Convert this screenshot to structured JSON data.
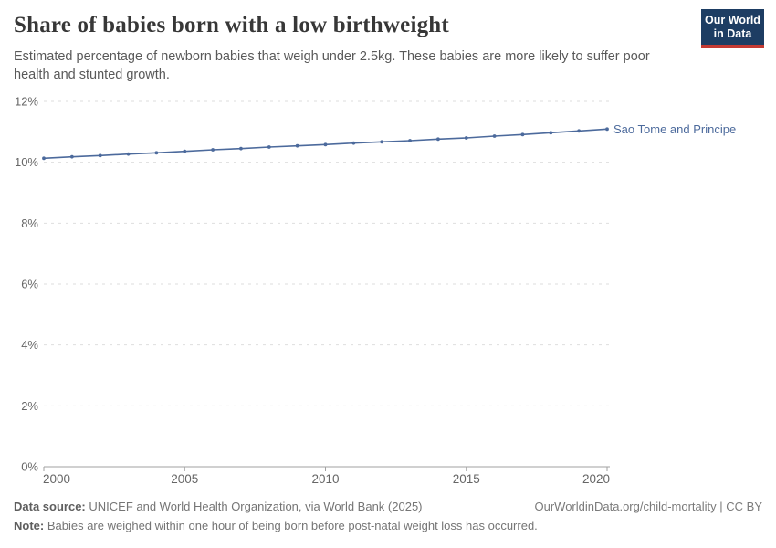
{
  "header": {
    "title": "Share of babies born with a low birthweight",
    "subtitle": "Estimated percentage of newborn babies that weigh under 2.5kg. These babies are more likely to suffer poor health and stunted growth.",
    "logo": {
      "line1": "Our World",
      "line2": "in Data",
      "bg": "#1d3d63",
      "accent": "#c43a33"
    }
  },
  "chart_data": {
    "type": "line",
    "title": "Share of babies born with a low birthweight",
    "xlabel": "",
    "ylabel": "",
    "xlim": [
      2000,
      2020
    ],
    "ylim": [
      0,
      12
    ],
    "grid": "horizontal-dashed",
    "legend_position": "end-of-line-label",
    "x_ticks": [
      2000,
      2005,
      2010,
      2015,
      2020
    ],
    "y_ticks": [
      0,
      2,
      4,
      6,
      8,
      10,
      12
    ],
    "y_tick_suffix": "%",
    "x": [
      2000,
      2001,
      2002,
      2003,
      2004,
      2005,
      2006,
      2007,
      2008,
      2009,
      2010,
      2011,
      2012,
      2013,
      2014,
      2015,
      2016,
      2017,
      2018,
      2019,
      2020
    ],
    "series": [
      {
        "name": "Sao Tome and Principe",
        "color": "#4c6a9c",
        "values": [
          10.13,
          10.18,
          10.22,
          10.27,
          10.31,
          10.36,
          10.41,
          10.45,
          10.5,
          10.54,
          10.58,
          10.63,
          10.67,
          10.71,
          10.76,
          10.8,
          10.86,
          10.91,
          10.97,
          11.03,
          11.09
        ]
      }
    ],
    "colors": {
      "grid": "#dedede",
      "axis": "#a1a1a1",
      "tick_text": "#666666"
    }
  },
  "footer": {
    "data_source_label": "Data source:",
    "data_source": "UNICEF and World Health Organization, via World Bank (2025)",
    "attribution": "OurWorldinData.org/child-mortality | CC BY",
    "note_label": "Note:",
    "note": "Babies are weighed within one hour of being born before post-natal weight loss has occurred."
  }
}
